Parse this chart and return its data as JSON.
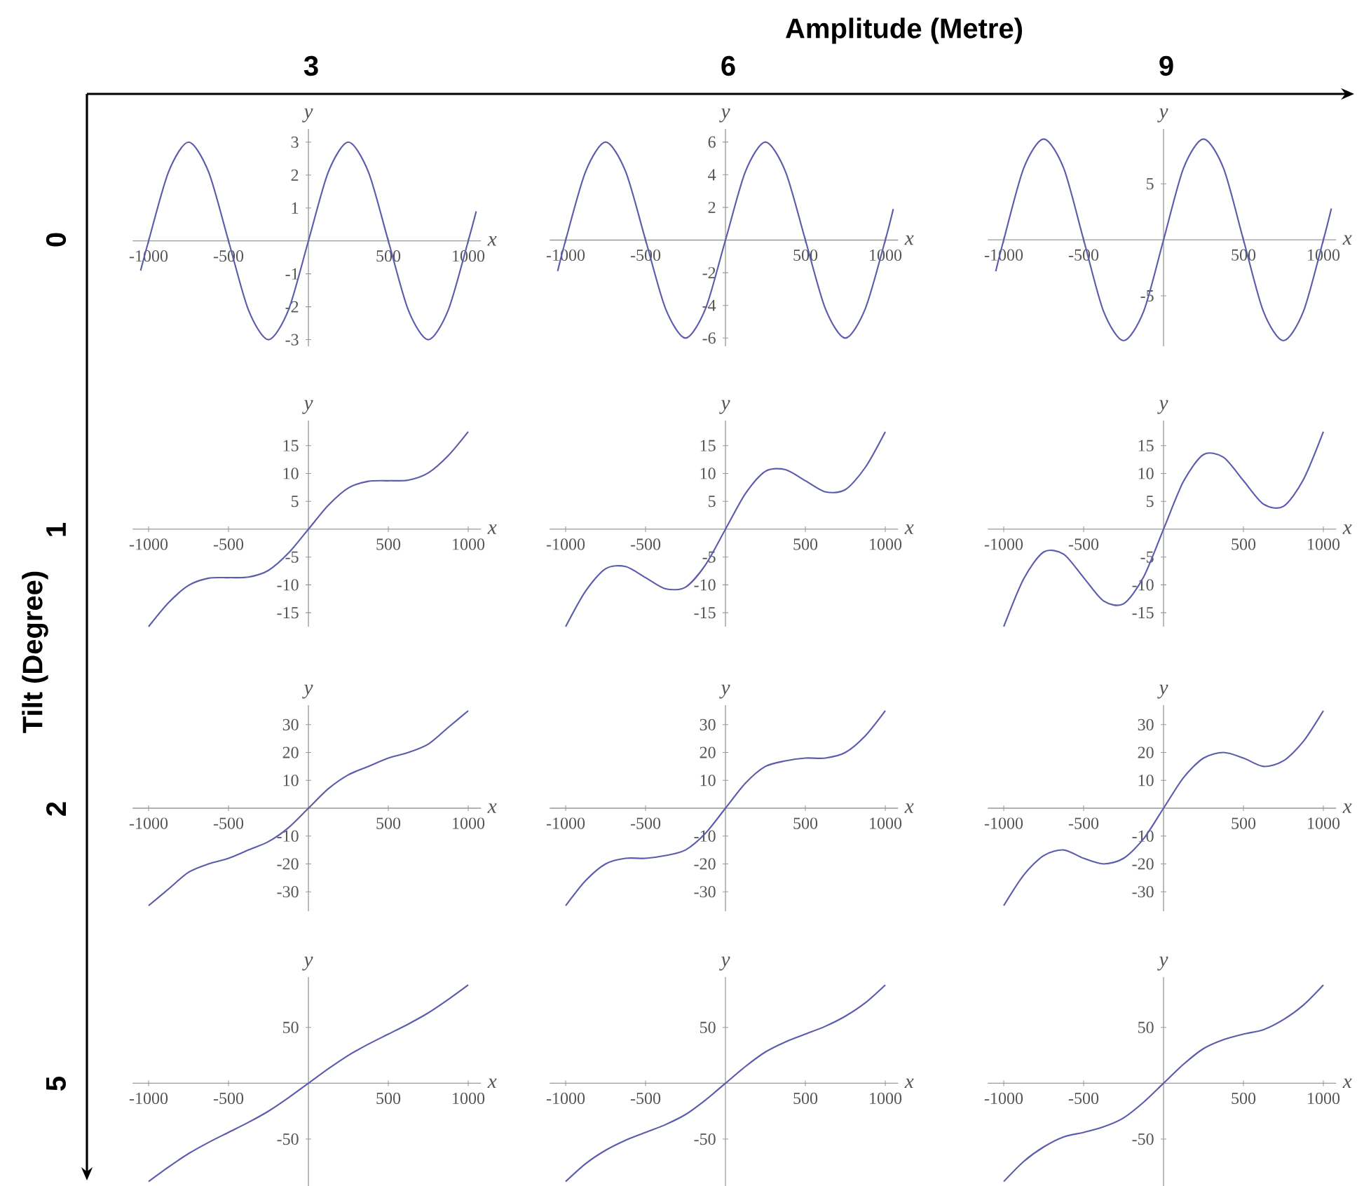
{
  "chart_data": [
    {
      "type": "other",
      "xlabel": "Amplitude (Metre)",
      "ylabel": "Tilt (Degree)",
      "categories": [
        "3",
        "6",
        "9"
      ],
      "y_categories": [
        "0",
        "1",
        "2",
        "5"
      ]
    },
    {
      "type": "line",
      "xlabel": "x",
      "ylabel": "y",
      "color": "#5c5cac",
      "xlim": [
        -1100,
        1080
      ],
      "ylim": [
        -3.2,
        3.4
      ],
      "xticks": [
        -1000,
        -500,
        500,
        1000
      ],
      "yticks": [
        -3,
        -2,
        -1,
        1,
        2,
        3
      ],
      "x": [
        -1050,
        -1000,
        -875,
        -750,
        -625,
        -500,
        -375,
        -250,
        -125,
        0,
        125,
        250,
        375,
        500,
        625,
        750,
        875,
        1000,
        1050
      ],
      "values": [
        -0.9,
        0,
        2.1,
        3,
        2.1,
        0,
        -2.1,
        -3,
        -2.1,
        0,
        2.1,
        3,
        2.1,
        0,
        -2.1,
        -3,
        -2.1,
        0,
        0.9
      ]
    },
    {
      "type": "line",
      "xlabel": "x",
      "ylabel": "y",
      "color": "#5c5cac",
      "xlim": [
        -1100,
        1080
      ],
      "ylim": [
        -6.5,
        6.8
      ],
      "xticks": [
        -1000,
        -500,
        500,
        1000
      ],
      "yticks": [
        -6,
        -4,
        -2,
        2,
        4,
        6
      ],
      "x": [
        -1050,
        -1000,
        -875,
        -750,
        -625,
        -500,
        -375,
        -250,
        -125,
        0,
        125,
        250,
        375,
        500,
        625,
        750,
        875,
        1000,
        1050
      ],
      "values": [
        -1.9,
        0,
        4.2,
        6,
        4.2,
        0,
        -4.2,
        -6,
        -4.2,
        0,
        4.2,
        6,
        4.2,
        0,
        -4.2,
        -6,
        -4.2,
        0,
        1.9
      ]
    },
    {
      "type": "line",
      "xlabel": "x",
      "ylabel": "y",
      "color": "#5c5cac",
      "xlim": [
        -1100,
        1080
      ],
      "ylim": [
        -9.5,
        9.9
      ],
      "xticks": [
        -1000,
        -500,
        500,
        1000
      ],
      "yticks": [
        -5,
        5
      ],
      "x": [
        -1050,
        -1000,
        -875,
        -750,
        -625,
        -500,
        -375,
        -250,
        -125,
        0,
        125,
        250,
        375,
        500,
        625,
        750,
        875,
        1000,
        1050
      ],
      "values": [
        -2.8,
        0,
        6.4,
        9,
        6.4,
        0,
        -6.4,
        -9,
        -6.4,
        0,
        6.4,
        9,
        6.4,
        0,
        -6.4,
        -9,
        -6.4,
        0,
        2.8
      ]
    },
    {
      "type": "line",
      "xlabel": "x",
      "ylabel": "y",
      "color": "#5c5cac",
      "xlim": [
        -1100,
        1080
      ],
      "ylim": [
        -17.5,
        19.5
      ],
      "xticks": [
        -1000,
        -500,
        500,
        1000
      ],
      "yticks": [
        -15,
        -10,
        -5,
        5,
        10,
        15
      ],
      "x": [
        -1000,
        -875,
        -750,
        -625,
        -500,
        -375,
        -250,
        -125,
        0,
        125,
        250,
        375,
        500,
        625,
        750,
        875,
        1000
      ],
      "values": [
        -17.5,
        -13.2,
        -10.1,
        -8.8,
        -8.7,
        -8.6,
        -7.4,
        -4.3,
        0,
        4.3,
        7.4,
        8.6,
        8.7,
        8.8,
        10.1,
        13.2,
        17.5
      ]
    },
    {
      "type": "line",
      "xlabel": "x",
      "ylabel": "y",
      "color": "#5c5cac",
      "xlim": [
        -1100,
        1080
      ],
      "ylim": [
        -17.5,
        19.5
      ],
      "xticks": [
        -1000,
        -500,
        500,
        1000
      ],
      "yticks": [
        -15,
        -10,
        -5,
        5,
        10,
        15
      ],
      "x": [
        -1000,
        -875,
        -750,
        -625,
        -500,
        -375,
        -250,
        -125,
        0,
        125,
        250,
        375,
        500,
        625,
        750,
        875,
        1000
      ],
      "values": [
        -17.5,
        -11.1,
        -7.1,
        -6.7,
        -8.7,
        -10.7,
        -10.4,
        -6.4,
        0,
        6.4,
        10.4,
        10.7,
        8.7,
        6.7,
        7.1,
        11.1,
        17.5
      ]
    },
    {
      "type": "line",
      "xlabel": "x",
      "ylabel": "y",
      "color": "#5c5cac",
      "xlim": [
        -1100,
        1080
      ],
      "ylim": [
        -17.5,
        19.5
      ],
      "xticks": [
        -1000,
        -500,
        500,
        1000
      ],
      "yticks": [
        -15,
        -10,
        -5,
        5,
        10,
        15
      ],
      "x": [
        -1000,
        -875,
        -750,
        -625,
        -500,
        -375,
        -250,
        -125,
        0,
        125,
        250,
        375,
        500,
        625,
        750,
        875,
        1000
      ],
      "values": [
        -17.5,
        -8.9,
        -4.1,
        -4.5,
        -8.7,
        -12.9,
        -13.4,
        -8.6,
        0,
        8.6,
        13.4,
        12.9,
        8.7,
        4.5,
        4.1,
        8.9,
        17.5
      ]
    },
    {
      "type": "line",
      "xlabel": "x",
      "ylabel": "y",
      "color": "#5c5cac",
      "xlim": [
        -1100,
        1080
      ],
      "ylim": [
        -37,
        37
      ],
      "xticks": [
        -1000,
        -500,
        500,
        1000
      ],
      "yticks": [
        -30,
        -20,
        -10,
        10,
        20,
        30
      ],
      "x": [
        -1000,
        -875,
        -750,
        -625,
        -500,
        -375,
        -250,
        -125,
        0,
        125,
        250,
        375,
        500,
        625,
        750,
        875,
        1000
      ],
      "values": [
        -35,
        -29,
        -23,
        -20,
        -18,
        -15,
        -12,
        -7,
        0,
        7,
        12,
        15,
        18,
        20,
        23,
        29,
        35
      ]
    },
    {
      "type": "line",
      "xlabel": "x",
      "ylabel": "y",
      "color": "#5c5cac",
      "xlim": [
        -1100,
        1080
      ],
      "ylim": [
        -37,
        37
      ],
      "xticks": [
        -1000,
        -500,
        500,
        1000
      ],
      "yticks": [
        -30,
        -20,
        -10,
        10,
        20,
        30
      ],
      "x": [
        -1000,
        -875,
        -750,
        -625,
        -500,
        -375,
        -250,
        -125,
        0,
        125,
        250,
        375,
        500,
        625,
        750,
        875,
        1000
      ],
      "values": [
        -35,
        -26,
        -20,
        -18,
        -18,
        -17,
        -15,
        -9,
        0,
        9,
        15,
        17,
        18,
        18,
        20,
        26,
        35
      ]
    },
    {
      "type": "line",
      "xlabel": "x",
      "ylabel": "y",
      "color": "#5c5cac",
      "xlim": [
        -1100,
        1080
      ],
      "ylim": [
        -37,
        37
      ],
      "xticks": [
        -1000,
        -500,
        500,
        1000
      ],
      "yticks": [
        -30,
        -20,
        -10,
        10,
        20,
        30
      ],
      "x": [
        -1000,
        -875,
        -750,
        -625,
        -500,
        -375,
        -250,
        -125,
        0,
        125,
        250,
        375,
        500,
        625,
        750,
        875,
        1000
      ],
      "values": [
        -35,
        -24,
        -17,
        -15,
        -18,
        -20,
        -18,
        -11,
        0,
        11,
        18,
        20,
        18,
        15,
        17,
        24,
        35
      ]
    },
    {
      "type": "line",
      "xlabel": "x",
      "ylabel": "y",
      "color": "#5c5cac",
      "xlim": [
        -1100,
        1080
      ],
      "ylim": [
        -92,
        95
      ],
      "xticks": [
        -1000,
        -500,
        500,
        1000
      ],
      "yticks": [
        -50,
        50
      ],
      "x": [
        -1000,
        -875,
        -750,
        -625,
        -500,
        -375,
        -250,
        -125,
        0,
        125,
        250,
        375,
        500,
        625,
        750,
        875,
        1000
      ],
      "values": [
        -88,
        -75,
        -63,
        -53,
        -44,
        -35,
        -25,
        -13,
        0,
        13,
        25,
        35,
        44,
        53,
        63,
        75,
        88
      ]
    },
    {
      "type": "line",
      "xlabel": "x",
      "ylabel": "y",
      "color": "#5c5cac",
      "xlim": [
        -1100,
        1080
      ],
      "ylim": [
        -92,
        95
      ],
      "xticks": [
        -1000,
        -500,
        500,
        1000
      ],
      "yticks": [
        -50,
        50
      ],
      "x": [
        -1000,
        -875,
        -750,
        -625,
        -500,
        -375,
        -250,
        -125,
        0,
        125,
        250,
        375,
        500,
        625,
        750,
        875,
        1000
      ],
      "values": [
        -88,
        -72,
        -60,
        -51,
        -44,
        -37,
        -28,
        -15,
        0,
        15,
        28,
        37,
        44,
        51,
        60,
        72,
        88
      ]
    },
    {
      "type": "line",
      "xlabel": "x",
      "ylabel": "y",
      "color": "#5c5cac",
      "xlim": [
        -1100,
        1080
      ],
      "ylim": [
        -92,
        95
      ],
      "xticks": [
        -1000,
        -500,
        500,
        1000
      ],
      "yticks": [
        -50,
        50
      ],
      "x": [
        -1000,
        -875,
        -750,
        -625,
        -500,
        -375,
        -250,
        -125,
        0,
        125,
        250,
        375,
        500,
        625,
        750,
        875,
        1000
      ],
      "values": [
        -88,
        -70,
        -57,
        -48,
        -44,
        -39,
        -31,
        -17,
        0,
        17,
        31,
        39,
        44,
        48,
        57,
        70,
        88
      ]
    }
  ]
}
